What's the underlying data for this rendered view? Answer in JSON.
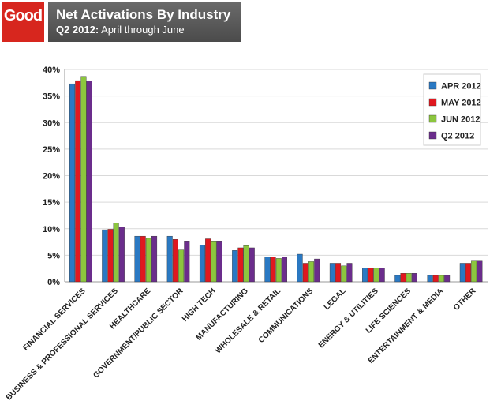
{
  "header": {
    "logo_text": "Good",
    "title": "Net Activations By Industry",
    "subtitle_period": "Q2 2012:",
    "subtitle_range": "April through June"
  },
  "colors": {
    "logo_red": "#d7261e",
    "header_gray": "#555555",
    "apr": "#2a79c3",
    "may": "#e0181f",
    "jun": "#8cc63e",
    "q2": "#6b2d8c"
  },
  "chart_data": {
    "type": "bar",
    "title": "Net Activations By Industry",
    "subtitle": "Q2 2012: April through June",
    "ylim": [
      0,
      40
    ],
    "yticks": [
      "0%",
      "5%",
      "10%",
      "15%",
      "20%",
      "25%",
      "30%",
      "35%",
      "40%"
    ],
    "grid": true,
    "legend_position": "top-right",
    "categories": [
      "FINANCIAL SERVICES",
      "BUSINESS & PROFESSIONAL SERVICES",
      "HEALTHCARE",
      "GOVERNMENT/PUBLIC SECTOR",
      "HIGH TECH",
      "MANUFACTURING",
      "WHOLESALE & RETAIL",
      "COMMUNICATIONS",
      "LEGAL",
      "ENERGY & UTILITIES",
      "LIFE SCIENCES",
      "ENTERTAINMENT & MEDIA",
      "OTHER"
    ],
    "series": [
      {
        "name": "APR 2012",
        "color": "#2a79c3",
        "values": [
          37.3,
          9.8,
          8.6,
          8.6,
          6.9,
          5.9,
          4.7,
          5.2,
          3.5,
          2.6,
          1.2,
          1.2,
          3.5
        ]
      },
      {
        "name": "MAY 2012",
        "color": "#e0181f",
        "values": [
          37.9,
          9.9,
          8.6,
          8.0,
          8.1,
          6.4,
          4.7,
          3.5,
          3.5,
          2.6,
          1.6,
          1.2,
          3.5
        ]
      },
      {
        "name": "JUN 2012",
        "color": "#8cc63e",
        "values": [
          38.7,
          11.1,
          8.2,
          6.0,
          7.7,
          6.8,
          4.4,
          3.8,
          3.0,
          2.6,
          1.6,
          1.2,
          3.9
        ]
      },
      {
        "name": "Q2 2012",
        "color": "#6b2d8c",
        "values": [
          37.8,
          10.3,
          8.6,
          7.7,
          7.7,
          6.4,
          4.7,
          4.3,
          3.5,
          2.6,
          1.6,
          1.2,
          3.9
        ]
      }
    ]
  }
}
